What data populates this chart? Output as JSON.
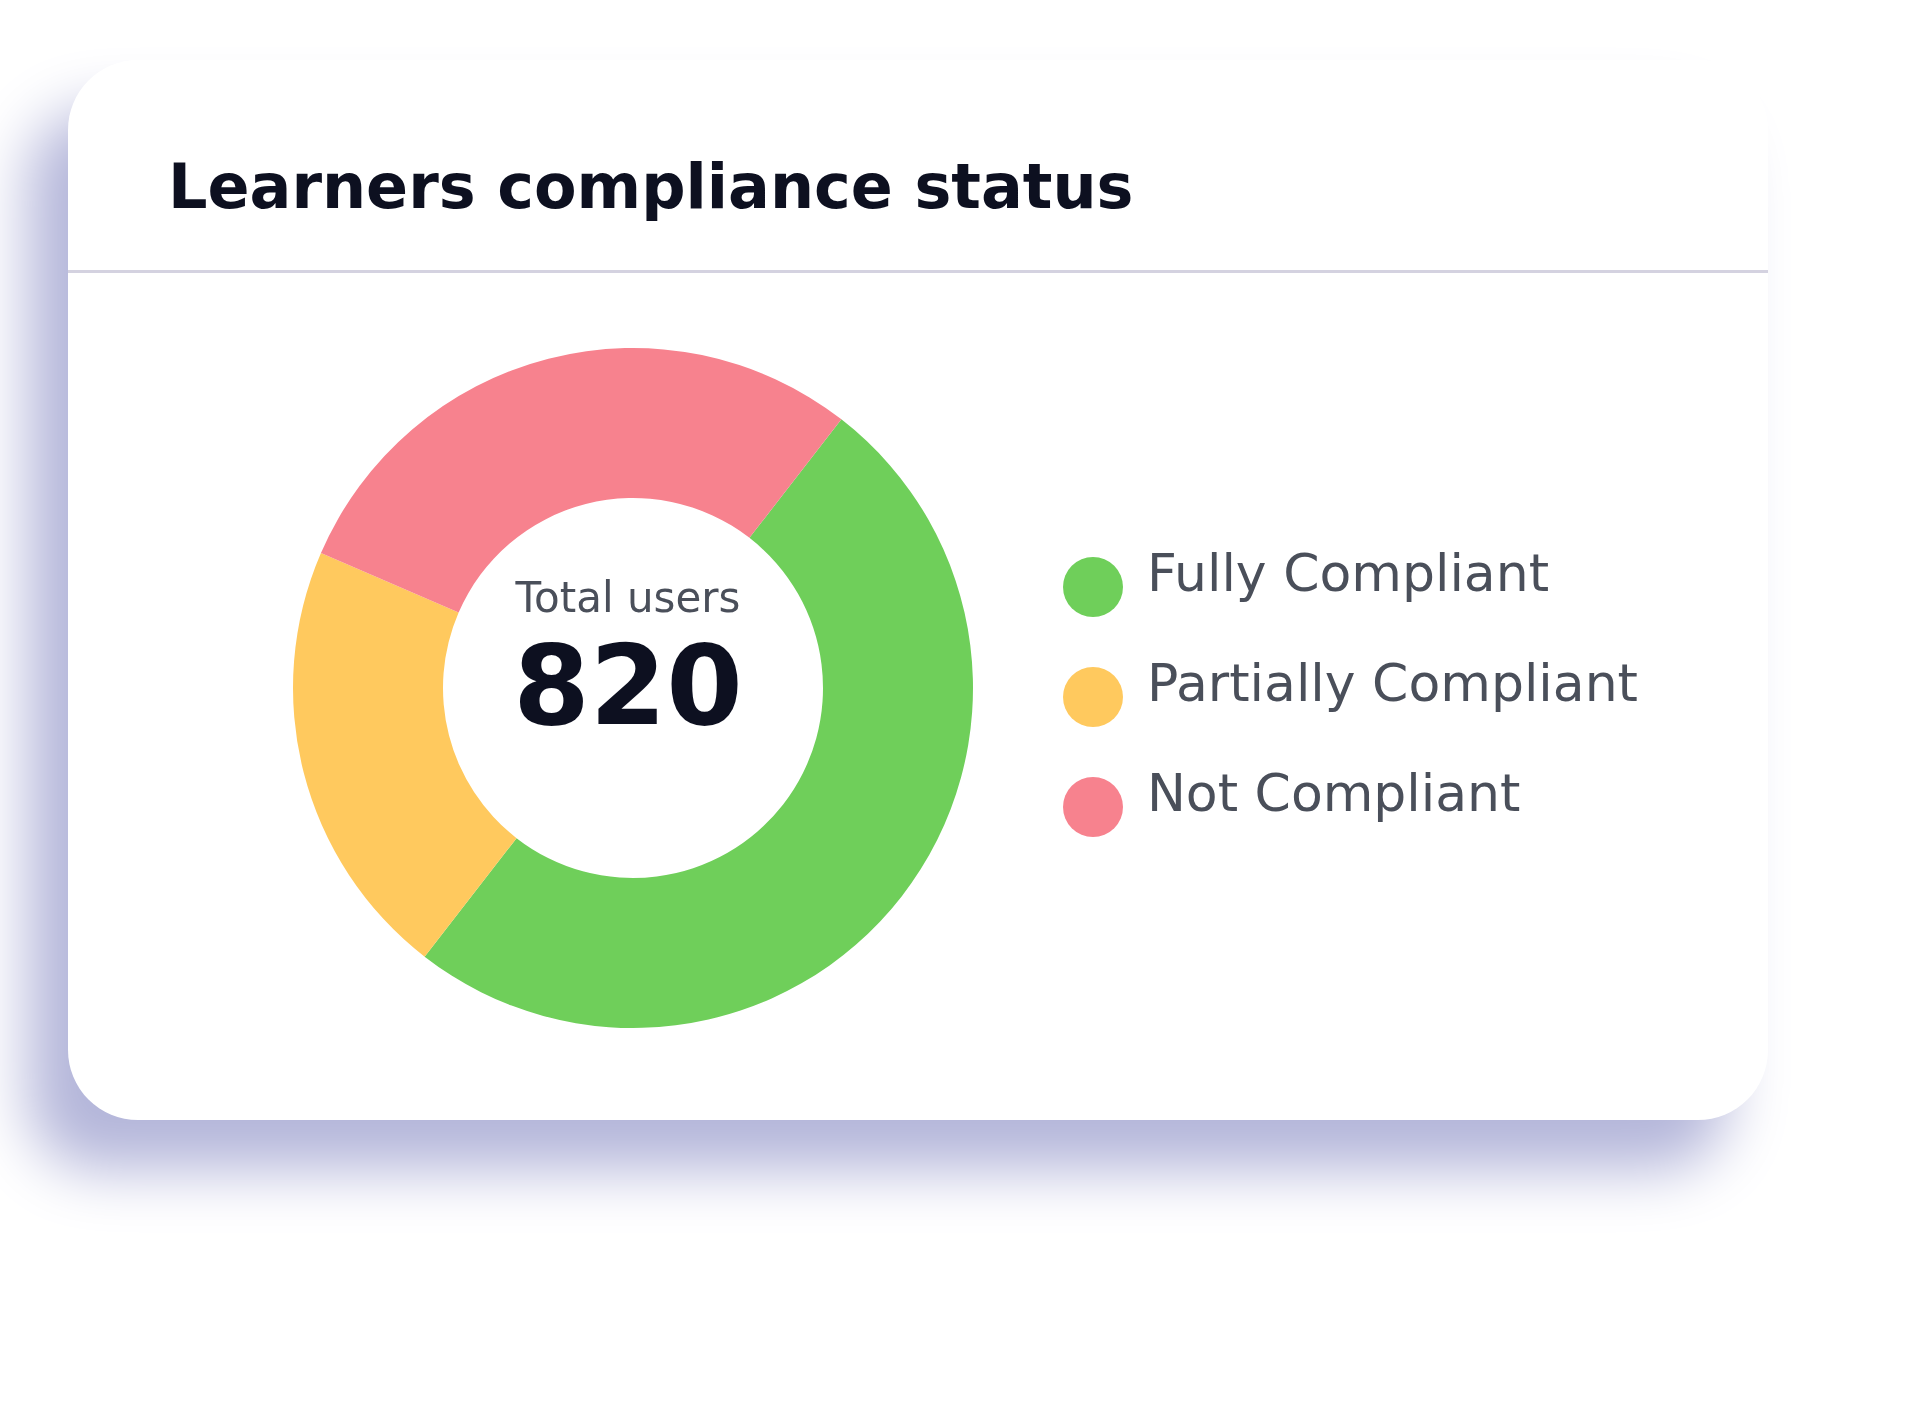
{
  "chart_data": {
    "type": "donut",
    "title": "Learners compliance status",
    "categories": [
      "Fully Compliant",
      "Partially Compliant",
      "Not Compliant"
    ],
    "values": [
      50,
      21,
      29
    ],
    "colors": [
      "#6fcf5a",
      "#ffc95e",
      "#f7828e"
    ],
    "annotations": [
      "Total users",
      "820"
    ],
    "legend": "right"
  }
}
